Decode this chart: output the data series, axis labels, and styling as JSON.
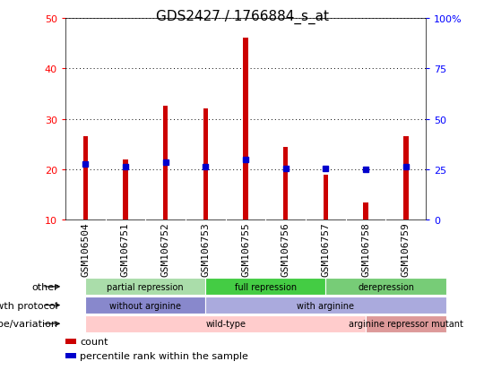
{
  "title": "GDS2427 / 1766884_s_at",
  "samples": [
    "GSM106504",
    "GSM106751",
    "GSM106752",
    "GSM106753",
    "GSM106755",
    "GSM106756",
    "GSM106757",
    "GSM106758",
    "GSM106759"
  ],
  "counts": [
    26.5,
    22.0,
    32.5,
    32.0,
    46.0,
    24.5,
    19.0,
    13.5,
    26.5
  ],
  "percentile_ranks": [
    27.5,
    26.5,
    28.5,
    26.5,
    30.0,
    25.5,
    25.5,
    25.0,
    26.5
  ],
  "ylim_left": [
    10,
    50
  ],
  "ylim_right": [
    0,
    100
  ],
  "yticks_left": [
    10,
    20,
    30,
    40,
    50
  ],
  "yticks_right": [
    0,
    25,
    50,
    75,
    100
  ],
  "bar_color": "#cc0000",
  "marker_color": "#0000cc",
  "bar_width": 0.12,
  "annotation_rows": [
    {
      "label": "other",
      "segments": [
        {
          "text": "partial repression",
          "start": 0,
          "end": 3,
          "color": "#aaddaa"
        },
        {
          "text": "full repression",
          "start": 3,
          "end": 6,
          "color": "#44cc44"
        },
        {
          "text": "derepression",
          "start": 6,
          "end": 9,
          "color": "#77cc77"
        }
      ]
    },
    {
      "label": "growth protocol",
      "segments": [
        {
          "text": "without arginine",
          "start": 0,
          "end": 3,
          "color": "#8888cc"
        },
        {
          "text": "with arginine",
          "start": 3,
          "end": 9,
          "color": "#aaaadd"
        }
      ]
    },
    {
      "label": "genotype/variation",
      "segments": [
        {
          "text": "wild-type",
          "start": 0,
          "end": 7,
          "color": "#ffcccc"
        },
        {
          "text": "arginine repressor mutant",
          "start": 7,
          "end": 9,
          "color": "#dd9999"
        }
      ]
    }
  ],
  "legend_items": [
    {
      "label": "count",
      "color": "#cc0000"
    },
    {
      "label": "percentile rank within the sample",
      "color": "#0000cc"
    }
  ],
  "title_fontsize": 11,
  "tick_fontsize": 8,
  "annotation_fontsize": 8,
  "ann_label_fontsize": 8
}
